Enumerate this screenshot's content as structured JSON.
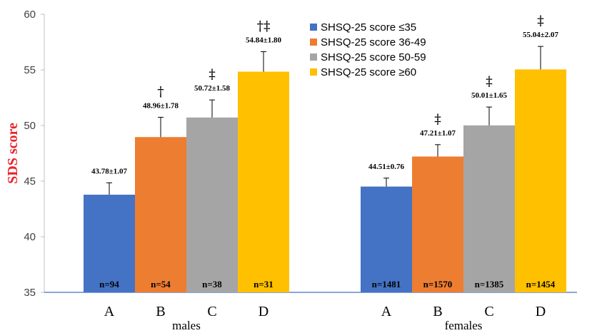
{
  "chart_data": {
    "type": "bar",
    "ylabel": "SDS score",
    "ylim": [
      35,
      60
    ],
    "yticks": [
      "35",
      "40",
      "45",
      "50",
      "55",
      "60"
    ],
    "grid": false,
    "legend_position": "top-right",
    "groups": [
      {
        "name": "males",
        "categories": [
          "A",
          "B",
          "C",
          "D"
        ],
        "values": [
          43.78,
          48.96,
          50.72,
          54.84
        ],
        "errors": [
          1.07,
          1.78,
          1.58,
          1.8
        ],
        "value_labels": [
          "43.78±1.07",
          "48.96±1.78",
          "50.72±1.58",
          "54.84±1.80"
        ],
        "significance": [
          "",
          "†",
          "‡",
          "†‡"
        ],
        "n_labels": [
          "n=94",
          "n=54",
          "n=38",
          "n=31"
        ]
      },
      {
        "name": "females",
        "categories": [
          "A",
          "B",
          "C",
          "D"
        ],
        "values": [
          44.51,
          47.21,
          50.01,
          55.04
        ],
        "errors": [
          0.76,
          1.07,
          1.65,
          2.07
        ],
        "value_labels": [
          "44.51±0.76",
          "47.21±1.07",
          "50.01±1.65",
          "55.04±2.07"
        ],
        "significance": [
          "",
          "‡",
          "‡",
          "‡"
        ],
        "n_labels": [
          "n=1481",
          "n=1570",
          "n=1385",
          "n=1454"
        ]
      }
    ],
    "series": [
      {
        "name": "SHSQ-25 score ≤35",
        "color": "#4472C4"
      },
      {
        "name": "SHSQ-25 score 36-49",
        "color": "#ED7D31"
      },
      {
        "name": "SHSQ-25 score 50-59",
        "color": "#A5A5A5"
      },
      {
        "name": "SHSQ-25 score ≥60",
        "color": "#FFC000"
      }
    ],
    "colors": {
      "ylabel": "#E8242B",
      "axis": "#4472C4"
    }
  }
}
